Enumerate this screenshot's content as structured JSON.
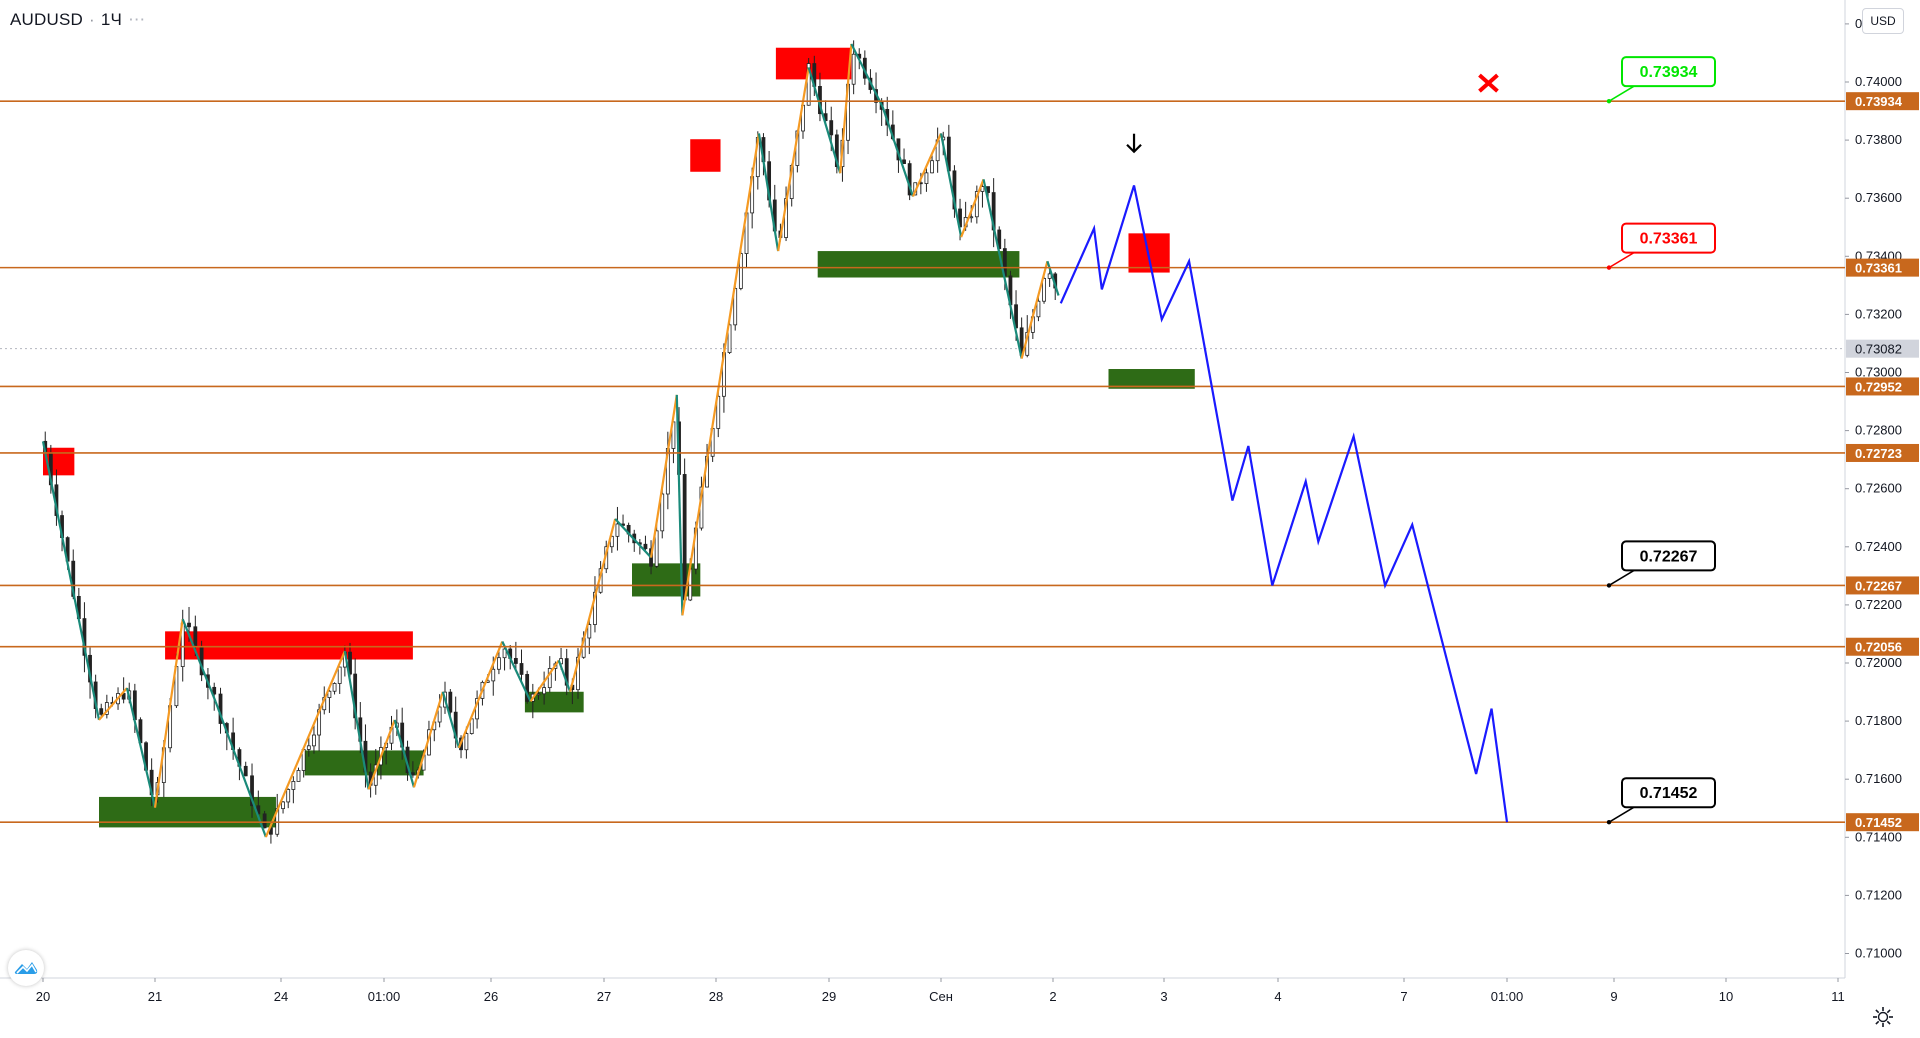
{
  "header": {
    "symbol": "AUDUSD",
    "interval": "1Ч",
    "currency": "USD"
  },
  "colors": {
    "level_line": "#c8681d",
    "level_tag_bg": "#c8681d",
    "supply_zone": "#ff0000",
    "demand_zone": "#2e6b16",
    "zigzag_up": "#f59a23",
    "zigzag_down": "#1a8a7a",
    "projection": "#1a1aff",
    "candle": "#222222",
    "target_green": "#00e600",
    "target_red": "#ff0000",
    "target_black": "#000000"
  },
  "chart_data": {
    "type": "candlestick",
    "symbol": "AUDUSD",
    "interval": "1Ч",
    "ylim": [
      0.70955,
      0.74305
    ],
    "y_ticks": [
      "0.74200",
      "0.74000",
      "0.73800",
      "0.73600",
      "0.73400",
      "0.73200",
      "0.73000",
      "0.72800",
      "0.72600",
      "0.72400",
      "0.72200",
      "0.72000",
      "0.71800",
      "0.71600",
      "0.71400",
      "0.71200",
      "0.71000"
    ],
    "x_ticks": [
      "20",
      "21",
      "24",
      "01:00",
      "26",
      "27",
      "28",
      "29",
      "Сен",
      "2",
      "3",
      "4",
      "7",
      "01:00",
      "9",
      "10",
      "11"
    ],
    "current_price": "0.73082",
    "levels": [
      {
        "price": 0.73934,
        "label": "0.73934"
      },
      {
        "price": 0.73361,
        "label": "0.73361"
      },
      {
        "price": 0.72952,
        "label": "0.72952"
      },
      {
        "price": 0.72723,
        "label": "0.72723"
      },
      {
        "price": 0.72267,
        "label": "0.72267"
      },
      {
        "price": 0.72056,
        "label": "0.72056"
      },
      {
        "price": 0.71452,
        "label": "0.71452"
      }
    ],
    "targets": [
      {
        "label": "0.73934",
        "price": 0.73934,
        "style": "green"
      },
      {
        "label": "0.73361",
        "price": 0.73361,
        "style": "red"
      },
      {
        "label": "0.72267",
        "price": 0.72267,
        "style": "black"
      },
      {
        "label": "0.71452",
        "price": 0.71452,
        "style": "black"
      }
    ],
    "supply_zones": [
      {
        "x0": 0.0,
        "x1": 0.28,
        "top": 0.72741,
        "bottom": 0.72646
      },
      {
        "x0": 1.08,
        "x1": 3.27,
        "top": 0.72109,
        "bottom": 0.72012
      },
      {
        "x0": 5.77,
        "x1": 6.04,
        "top": 0.73803,
        "bottom": 0.73691
      },
      {
        "x0": 6.53,
        "x1": 7.2,
        "top": 0.74118,
        "bottom": 0.74009
      },
      {
        "x0": 9.68,
        "x1": 10.05,
        "top": 0.73479,
        "bottom": 0.73344
      }
    ],
    "demand_zones": [
      {
        "x0": 0.5,
        "x1": 1.96,
        "top": 0.71539,
        "bottom": 0.71434
      },
      {
        "x0": 2.23,
        "x1": 3.37,
        "top": 0.71699,
        "bottom": 0.71613
      },
      {
        "x0": 4.3,
        "x1": 4.82,
        "top": 0.71901,
        "bottom": 0.7183
      },
      {
        "x0": 5.25,
        "x1": 5.86,
        "top": 0.72343,
        "bottom": 0.72229
      },
      {
        "x0": 6.9,
        "x1": 8.7,
        "top": 0.73418,
        "bottom": 0.73327
      },
      {
        "x0": 9.5,
        "x1": 10.27,
        "top": 0.73012,
        "bottom": 0.72944
      }
    ],
    "zigzag": [
      [
        0.0,
        0.72763
      ],
      [
        0.5,
        0.71804
      ],
      [
        0.75,
        0.71914
      ],
      [
        1.0,
        0.71502
      ],
      [
        1.22,
        0.72151
      ],
      [
        1.48,
        0.71868
      ],
      [
        1.88,
        0.71401
      ],
      [
        2.62,
        0.72041
      ],
      [
        2.85,
        0.71565
      ],
      [
        3.1,
        0.71804
      ],
      [
        3.28,
        0.71572
      ],
      [
        3.55,
        0.71901
      ],
      [
        3.7,
        0.71708
      ],
      [
        4.1,
        0.72074
      ],
      [
        4.35,
        0.71868
      ],
      [
        4.6,
        0.72009
      ],
      [
        4.7,
        0.71901
      ],
      [
        5.1,
        0.72496
      ],
      [
        5.42,
        0.72363
      ],
      [
        5.65,
        0.72923
      ],
      [
        5.7,
        0.72164
      ],
      [
        6.38,
        0.73823
      ],
      [
        6.55,
        0.73418
      ],
      [
        6.82,
        0.7405
      ],
      [
        7.1,
        0.73686
      ],
      [
        7.2,
        0.74131
      ],
      [
        7.48,
        0.73913
      ],
      [
        7.75,
        0.73606
      ],
      [
        8.0,
        0.73823
      ],
      [
        8.18,
        0.73466
      ],
      [
        8.38,
        0.73665
      ],
      [
        8.72,
        0.73048
      ],
      [
        8.95,
        0.73383
      ],
      [
        9.05,
        0.73265
      ]
    ],
    "projection": [
      [
        9.07,
        0.73238
      ],
      [
        9.37,
        0.73496
      ],
      [
        9.44,
        0.73286
      ],
      [
        9.73,
        0.73644
      ],
      [
        9.98,
        0.73183
      ],
      [
        10.22,
        0.73383
      ],
      [
        10.6,
        0.72559
      ],
      [
        10.74,
        0.72747
      ],
      [
        10.95,
        0.72267
      ],
      [
        11.22,
        0.72625
      ],
      [
        11.32,
        0.72418
      ],
      [
        11.6,
        0.7278
      ],
      [
        11.85,
        0.72267
      ],
      [
        12.08,
        0.72476
      ],
      [
        12.7,
        0.71618
      ],
      [
        12.85,
        0.71843
      ],
      [
        13.0,
        0.71452
      ]
    ],
    "markers": [
      {
        "type": "arrow-down",
        "x": 9.73,
        "price": 0.7376
      },
      {
        "type": "cross",
        "x": 12.82,
        "price": 0.73934
      }
    ]
  }
}
